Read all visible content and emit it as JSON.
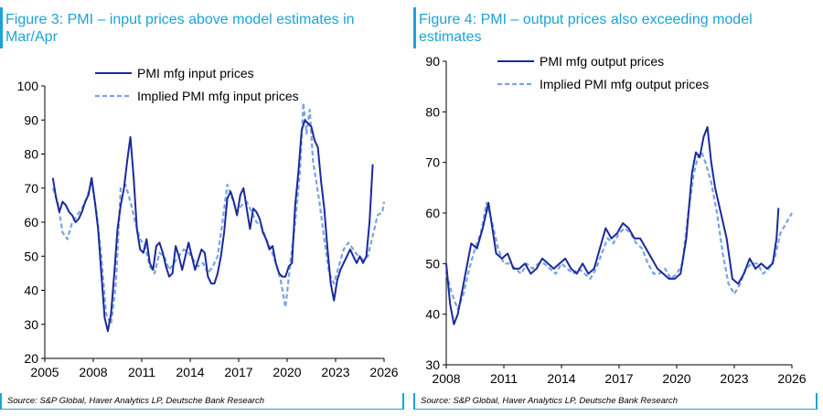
{
  "chart_data": [
    {
      "type": "line",
      "title": "Figure 3: PMI – input prices above model estimates in Mar/Apr",
      "source": "Source: S&P Global, Haver Analytics LP, Deutsche Bank Research",
      "xlim": [
        2005,
        2026
      ],
      "ylim": [
        20,
        100
      ],
      "x_ticks": [
        2005,
        2008,
        2011,
        2014,
        2017,
        2020,
        2023,
        2026
      ],
      "y_ticks": [
        20,
        30,
        40,
        50,
        60,
        70,
        80,
        90,
        100
      ],
      "legend_position": "top-center",
      "series": [
        {
          "name": "PMI mfg input prices",
          "style": "solid",
          "color": "#1a2a9c",
          "x": [
            2005.5,
            2005.7,
            2005.9,
            2006.1,
            2006.3,
            2006.5,
            2006.7,
            2006.9,
            2007.1,
            2007.3,
            2007.5,
            2007.7,
            2007.9,
            2008.1,
            2008.3,
            2008.5,
            2008.7,
            2008.9,
            2009.1,
            2009.3,
            2009.5,
            2009.7,
            2009.9,
            2010.1,
            2010.3,
            2010.5,
            2010.7,
            2010.9,
            2011.1,
            2011.3,
            2011.5,
            2011.7,
            2011.9,
            2012.1,
            2012.3,
            2012.5,
            2012.7,
            2012.9,
            2013.1,
            2013.3,
            2013.5,
            2013.7,
            2013.9,
            2014.1,
            2014.3,
            2014.5,
            2014.7,
            2014.9,
            2015.1,
            2015.3,
            2015.5,
            2015.7,
            2015.9,
            2016.1,
            2016.3,
            2016.5,
            2016.7,
            2016.9,
            2017.1,
            2017.3,
            2017.5,
            2017.7,
            2017.9,
            2018.1,
            2018.3,
            2018.5,
            2018.7,
            2018.9,
            2019.1,
            2019.3,
            2019.5,
            2019.7,
            2019.9,
            2020.1,
            2020.3,
            2020.5,
            2020.7,
            2020.9,
            2021.1,
            2021.3,
            2021.5,
            2021.7,
            2021.9,
            2022.1,
            2022.3,
            2022.5,
            2022.7,
            2022.9,
            2023.1,
            2023.3,
            2023.5,
            2023.7,
            2023.9,
            2024.1,
            2024.3,
            2024.5,
            2024.7,
            2024.9,
            2025.1,
            2025.3
          ],
          "y": [
            73,
            67,
            63,
            66,
            65,
            63,
            62,
            60,
            61,
            63,
            66,
            68,
            73,
            66,
            58,
            45,
            32,
            28,
            33,
            45,
            58,
            65,
            70,
            78,
            85,
            73,
            58,
            52,
            51,
            55,
            48,
            46,
            53,
            54,
            51,
            47,
            44,
            45,
            53,
            50,
            46,
            50,
            54,
            50,
            46,
            49,
            52,
            51,
            44,
            42,
            42,
            45,
            50,
            57,
            67,
            69,
            66,
            62,
            68,
            70,
            64,
            58,
            64,
            63,
            61,
            57,
            55,
            52,
            53,
            48,
            45,
            44,
            44,
            47,
            48,
            65,
            75,
            87,
            90,
            89,
            88,
            84,
            82,
            72,
            64,
            52,
            42,
            37,
            43,
            46,
            48,
            50,
            52,
            50,
            48,
            50,
            48,
            50,
            60,
            77
          ]
        },
        {
          "name": "Implied PMI mfg input prices",
          "style": "dashed",
          "color": "#7aa3e0",
          "x": [
            2005.5,
            2005.8,
            2006.1,
            2006.4,
            2006.7,
            2007.0,
            2007.3,
            2007.6,
            2007.9,
            2008.2,
            2008.5,
            2008.8,
            2009.1,
            2009.4,
            2009.7,
            2010.0,
            2010.3,
            2010.6,
            2010.9,
            2011.2,
            2011.5,
            2011.8,
            2012.1,
            2012.4,
            2012.7,
            2013.0,
            2013.3,
            2013.6,
            2013.9,
            2014.2,
            2014.5,
            2014.8,
            2015.1,
            2015.4,
            2015.7,
            2016.0,
            2016.3,
            2016.6,
            2016.9,
            2017.2,
            2017.5,
            2017.8,
            2018.1,
            2018.4,
            2018.7,
            2019.0,
            2019.3,
            2019.6,
            2019.9,
            2020.2,
            2020.5,
            2020.8,
            2021.0,
            2021.2,
            2021.4,
            2021.6,
            2021.8,
            2022.0,
            2022.3,
            2022.6,
            2022.9,
            2023.2,
            2023.5,
            2023.8,
            2024.1,
            2024.4,
            2024.7,
            2025.0,
            2025.3,
            2025.6,
            2025.9,
            2026.0
          ],
          "y": [
            70,
            66,
            57,
            55,
            60,
            62,
            64,
            67,
            72,
            63,
            50,
            33,
            30,
            42,
            70,
            71,
            66,
            60,
            55,
            53,
            47,
            45,
            51,
            50,
            46,
            48,
            50,
            52,
            51,
            49,
            47,
            48,
            45,
            47,
            50,
            60,
            71,
            67,
            63,
            65,
            66,
            63,
            60,
            59,
            55,
            52,
            48,
            43,
            35,
            48,
            60,
            75,
            95,
            86,
            93,
            78,
            72,
            66,
            55,
            45,
            42,
            47,
            52,
            54,
            52,
            50,
            49,
            50,
            56,
            62,
            63,
            66
          ]
        }
      ]
    },
    {
      "type": "line",
      "title": "Figure 4: PMI – output prices also exceeding model estimates",
      "source": "Source: S&P Global, Haver Analytics LP, Deutsche Bank Research",
      "xlim": [
        2008,
        2026
      ],
      "ylim": [
        30,
        90
      ],
      "x_ticks": [
        2008,
        2011,
        2014,
        2017,
        2020,
        2023,
        2026
      ],
      "y_ticks": [
        30,
        40,
        50,
        60,
        70,
        80,
        90
      ],
      "legend_position": "top-center",
      "series": [
        {
          "name": "PMI mfg output prices",
          "style": "solid",
          "color": "#1a2a9c",
          "x": [
            2008.0,
            2008.2,
            2008.4,
            2008.6,
            2008.8,
            2009.0,
            2009.3,
            2009.6,
            2009.9,
            2010.2,
            2010.4,
            2010.6,
            2010.9,
            2011.2,
            2011.5,
            2011.8,
            2012.1,
            2012.4,
            2012.7,
            2013.0,
            2013.3,
            2013.6,
            2013.9,
            2014.2,
            2014.5,
            2014.8,
            2015.1,
            2015.4,
            2015.7,
            2016.0,
            2016.3,
            2016.6,
            2016.9,
            2017.2,
            2017.5,
            2017.8,
            2018.1,
            2018.4,
            2018.7,
            2019.0,
            2019.3,
            2019.6,
            2019.9,
            2020.2,
            2020.5,
            2020.8,
            2021.0,
            2021.2,
            2021.4,
            2021.6,
            2021.8,
            2022.0,
            2022.3,
            2022.6,
            2022.9,
            2023.2,
            2023.5,
            2023.8,
            2024.1,
            2024.4,
            2024.7,
            2025.0,
            2025.2,
            2025.3
          ],
          "y": [
            50,
            42,
            38,
            40,
            44,
            48,
            54,
            53,
            57,
            62,
            57,
            52,
            51,
            52,
            49,
            49,
            50,
            48,
            49,
            51,
            50,
            49,
            50,
            51,
            49,
            48,
            50,
            48,
            49,
            53,
            57,
            55,
            56,
            58,
            57,
            55,
            55,
            53,
            51,
            49,
            48,
            47,
            47,
            48,
            55,
            68,
            72,
            71,
            75,
            77,
            70,
            65,
            60,
            55,
            47,
            46,
            48,
            51,
            49,
            50,
            49,
            50,
            55,
            61
          ]
        },
        {
          "name": "Implied PMI mfg output prices",
          "style": "dashed",
          "color": "#7aa3e0",
          "x": [
            2008.0,
            2008.3,
            2008.6,
            2008.9,
            2009.2,
            2009.5,
            2009.8,
            2010.1,
            2010.4,
            2010.7,
            2011.0,
            2011.3,
            2011.6,
            2011.9,
            2012.2,
            2012.5,
            2012.8,
            2013.1,
            2013.4,
            2013.7,
            2014.0,
            2014.3,
            2014.6,
            2014.9,
            2015.2,
            2015.5,
            2015.8,
            2016.1,
            2016.4,
            2016.7,
            2017.0,
            2017.3,
            2017.6,
            2017.9,
            2018.2,
            2018.5,
            2018.8,
            2019.1,
            2019.4,
            2019.7,
            2020.0,
            2020.3,
            2020.6,
            2020.9,
            2021.1,
            2021.3,
            2021.5,
            2021.8,
            2022.1,
            2022.4,
            2022.7,
            2023.0,
            2023.3,
            2023.6,
            2023.9,
            2024.2,
            2024.5,
            2024.8,
            2025.1,
            2025.4,
            2025.7,
            2026.0
          ],
          "y": [
            48,
            44,
            41,
            44,
            49,
            53,
            56,
            62,
            58,
            53,
            50,
            50,
            49,
            48,
            50,
            49,
            50,
            50,
            49,
            48,
            50,
            49,
            48,
            49,
            48,
            47,
            49,
            52,
            55,
            54,
            56,
            57,
            56,
            54,
            53,
            50,
            48,
            48,
            49,
            47,
            48,
            50,
            60,
            68,
            71,
            72,
            70,
            66,
            60,
            52,
            46,
            44,
            46,
            49,
            50,
            50,
            48,
            49,
            51,
            56,
            58,
            60
          ]
        }
      ]
    }
  ]
}
